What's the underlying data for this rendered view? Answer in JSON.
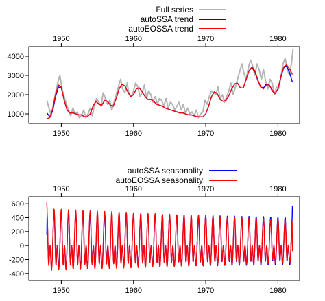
{
  "chart_data": [
    {
      "type": "line",
      "xlim": [
        1945.5,
        1983.0
      ],
      "ylim": [
        500,
        4500
      ],
      "xticks": [
        1950,
        1960,
        1970,
        1980
      ],
      "yticks": [
        1000,
        2000,
        3000,
        4000
      ],
      "legend_position": "top-center",
      "grid": false,
      "series": [
        {
          "name": "Full series",
          "color": "#b4b4b4",
          "x": [
            1948.0,
            1948.3,
            1948.6,
            1948.9,
            1949.2,
            1949.5,
            1949.8,
            1950.1,
            1950.4,
            1950.7,
            1951.0,
            1951.3,
            1951.6,
            1951.9,
            1952.2,
            1952.5,
            1952.8,
            1953.1,
            1953.4,
            1953.7,
            1954.0,
            1954.3,
            1954.6,
            1954.9,
            1955.2,
            1955.5,
            1955.8,
            1956.1,
            1956.4,
            1956.7,
            1957.0,
            1957.3,
            1957.6,
            1957.9,
            1958.2,
            1958.5,
            1958.8,
            1959.1,
            1959.4,
            1959.7,
            1960.0,
            1960.3,
            1960.6,
            1960.9,
            1961.2,
            1961.5,
            1961.8,
            1962.1,
            1962.4,
            1962.7,
            1963.0,
            1963.3,
            1963.6,
            1963.9,
            1964.2,
            1964.5,
            1964.8,
            1965.1,
            1965.4,
            1965.7,
            1966.0,
            1966.3,
            1966.6,
            1966.9,
            1967.2,
            1967.5,
            1967.8,
            1968.1,
            1968.4,
            1968.7,
            1969.0,
            1969.3,
            1969.6,
            1969.9,
            1970.2,
            1970.5,
            1970.8,
            1971.1,
            1971.4,
            1971.7,
            1972.0,
            1972.3,
            1972.6,
            1972.9,
            1973.2,
            1973.5,
            1973.8,
            1974.1,
            1974.4,
            1974.7,
            1975.0,
            1975.3,
            1975.6,
            1975.9,
            1976.2,
            1976.5,
            1976.8,
            1977.1,
            1977.4,
            1977.7,
            1978.0,
            1978.3,
            1978.6,
            1978.9,
            1979.2,
            1979.5,
            1979.8,
            1980.1,
            1980.4,
            1980.7,
            1981.0,
            1981.3,
            1981.6,
            1981.9,
            1982.1
          ],
          "y": [
            1700,
            1300,
            900,
            1500,
            2100,
            2600,
            3000,
            2300,
            1900,
            1500,
            1200,
            900,
            1300,
            1000,
            1100,
            800,
            900,
            1200,
            800,
            1000,
            1300,
            900,
            1500,
            1800,
            1600,
            1400,
            2100,
            1800,
            1500,
            1700,
            1200,
            1600,
            2000,
            2400,
            2800,
            2300,
            2100,
            2600,
            2000,
            1900,
            2200,
            2600,
            2400,
            1900,
            2100,
            2500,
            1800,
            2200,
            2000,
            1600,
            1900,
            1500,
            1800,
            1700,
            1400,
            1800,
            1300,
            1600,
            1500,
            1200,
            1400,
            1600,
            1200,
            1500,
            1000,
            1300,
            1000,
            1100,
            900,
            1200,
            800,
            1000,
            1100,
            1700,
            1500,
            1900,
            2200,
            2100,
            2000,
            2400,
            1800,
            2000,
            1600,
            1900,
            2200,
            2600,
            2000,
            2400,
            2800,
            3200,
            3600,
            3100,
            2800,
            3400,
            3800,
            3500,
            3000,
            3600,
            3300,
            2800,
            3300,
            2700,
            2300,
            2800,
            2600,
            2000,
            2400,
            2300,
            2900,
            3600,
            3900,
            3300,
            3000,
            3700,
            4400
          ]
        },
        {
          "name": "autoSSA trend",
          "color": "#0000ff",
          "x": [
            1948.0,
            1948.4,
            1948.8,
            1949.2,
            1949.6,
            1950.0,
            1950.4,
            1950.8,
            1951.2,
            1951.6,
            1952.0,
            1952.4,
            1952.8,
            1953.2,
            1953.6,
            1954.0,
            1954.4,
            1954.8,
            1955.2,
            1955.6,
            1956.0,
            1956.4,
            1956.8,
            1957.2,
            1957.6,
            1958.0,
            1958.4,
            1958.8,
            1959.2,
            1959.6,
            1960.0,
            1960.4,
            1960.8,
            1961.2,
            1961.6,
            1962.0,
            1962.4,
            1962.8,
            1963.2,
            1963.6,
            1964.0,
            1964.4,
            1964.8,
            1965.2,
            1965.6,
            1966.0,
            1966.4,
            1966.8,
            1967.2,
            1967.6,
            1968.0,
            1968.4,
            1968.8,
            1969.2,
            1969.6,
            1970.0,
            1970.4,
            1970.8,
            1971.2,
            1971.6,
            1972.0,
            1972.4,
            1972.8,
            1973.2,
            1973.6,
            1974.0,
            1974.4,
            1974.8,
            1975.2,
            1975.6,
            1976.0,
            1976.4,
            1976.8,
            1977.2,
            1977.6,
            1978.0,
            1978.4,
            1978.8,
            1979.2,
            1979.6,
            1980.0,
            1980.4,
            1980.8,
            1981.2,
            1981.6,
            1982.0
          ],
          "y": [
            1050,
            850,
            1150,
            1900,
            2400,
            2350,
            1700,
            1200,
            1050,
            1050,
            1000,
            950,
            950,
            850,
            850,
            1000,
            1400,
            1650,
            1500,
            1450,
            1700,
            1650,
            1450,
            1400,
            1800,
            2300,
            2550,
            2450,
            2150,
            1900,
            2000,
            2300,
            2350,
            2150,
            1900,
            1750,
            1750,
            1650,
            1500,
            1450,
            1400,
            1300,
            1250,
            1200,
            1150,
            1100,
            1050,
            1050,
            1000,
            950,
            950,
            900,
            850,
            850,
            850,
            1000,
            1400,
            1900,
            2150,
            2050,
            1750,
            1650,
            1700,
            1950,
            2300,
            2550,
            2600,
            2350,
            2350,
            2800,
            3250,
            3400,
            3200,
            2750,
            2400,
            2350,
            2550,
            2500,
            2200,
            2050,
            2300,
            2900,
            3400,
            3500,
            3150,
            2650
          ]
        },
        {
          "name": "autoEOSSA trend",
          "color": "#ff0000",
          "x": [
            1948.0,
            1948.4,
            1948.8,
            1949.2,
            1949.6,
            1950.0,
            1950.4,
            1950.8,
            1951.2,
            1951.6,
            1952.0,
            1952.4,
            1952.8,
            1953.2,
            1953.6,
            1954.0,
            1954.4,
            1954.8,
            1955.2,
            1955.6,
            1956.0,
            1956.4,
            1956.8,
            1957.2,
            1957.6,
            1958.0,
            1958.4,
            1958.8,
            1959.2,
            1959.6,
            1960.0,
            1960.4,
            1960.8,
            1961.2,
            1961.6,
            1962.0,
            1962.4,
            1962.8,
            1963.2,
            1963.6,
            1964.0,
            1964.4,
            1964.8,
            1965.2,
            1965.6,
            1966.0,
            1966.4,
            1966.8,
            1967.2,
            1967.6,
            1968.0,
            1968.4,
            1968.8,
            1969.2,
            1969.6,
            1970.0,
            1970.4,
            1970.8,
            1971.2,
            1971.6,
            1972.0,
            1972.4,
            1972.8,
            1973.2,
            1973.6,
            1974.0,
            1974.4,
            1974.8,
            1975.2,
            1975.6,
            1976.0,
            1976.4,
            1976.8,
            1977.2,
            1977.6,
            1978.0,
            1978.4,
            1978.8,
            1979.2,
            1979.6,
            1980.0,
            1980.4,
            1980.8,
            1981.2,
            1981.6,
            1982.0
          ],
          "y": [
            750,
            800,
            1250,
            2000,
            2500,
            2400,
            1700,
            1200,
            1050,
            1050,
            1000,
            950,
            950,
            850,
            850,
            1000,
            1400,
            1650,
            1500,
            1450,
            1700,
            1650,
            1450,
            1400,
            1800,
            2300,
            2550,
            2450,
            2150,
            1900,
            2000,
            2300,
            2350,
            2150,
            1900,
            1750,
            1750,
            1650,
            1500,
            1450,
            1400,
            1300,
            1250,
            1200,
            1150,
            1100,
            1050,
            1050,
            1000,
            950,
            950,
            900,
            850,
            850,
            850,
            1000,
            1400,
            1900,
            2150,
            2050,
            1750,
            1650,
            1700,
            1950,
            2300,
            2550,
            2600,
            2350,
            2350,
            2800,
            3250,
            3450,
            3250,
            2800,
            2400,
            2300,
            2500,
            2500,
            2250,
            2050,
            2300,
            2950,
            3450,
            3550,
            3350,
            3050
          ]
        }
      ]
    },
    {
      "type": "line",
      "xlim": [
        1945.5,
        1983.0
      ],
      "ylim": [
        -500,
        700
      ],
      "xticks": [
        1950,
        1960,
        1970,
        1980
      ],
      "yticks": [
        -400,
        -200,
        0,
        200,
        400,
        600
      ],
      "legend_position": "top-center",
      "grid": false,
      "period": 1.0,
      "series": [
        {
          "name": "autoSSA seasonality",
          "color": "#0000ff",
          "amplitude_start": 500,
          "amplitude_end": 420,
          "x_start": 1948.0,
          "x_end": 1982.0,
          "end_values": [
            {
              "x": 1948.0,
              "y": 150
            },
            {
              "x": 1982.0,
              "y": 570
            }
          ]
        },
        {
          "name": "autoEOSSA seasonality",
          "color": "#ff0000",
          "amplitude_start": 550,
          "amplitude_end": 380,
          "x_start": 1948.0,
          "x_end": 1982.0,
          "end_values": [
            {
              "x": 1948.0,
              "y": 620
            },
            {
              "x": 1982.0,
              "y": -80
            }
          ]
        }
      ]
    }
  ]
}
